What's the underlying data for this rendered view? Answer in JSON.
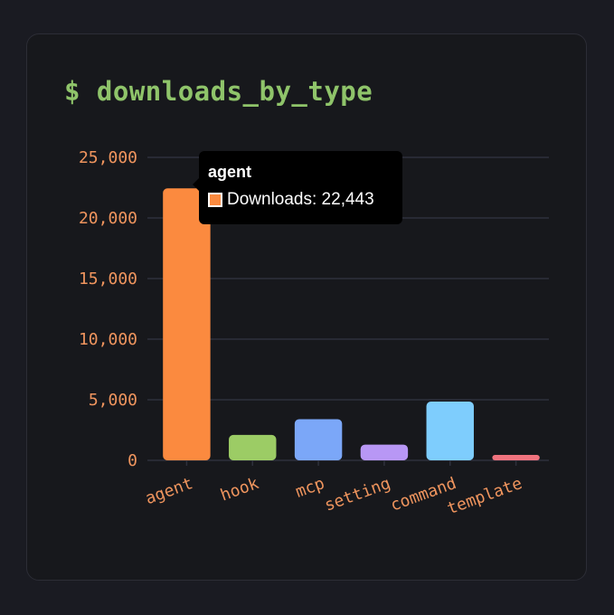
{
  "title": "$ downloads_by_type",
  "chart_data": {
    "type": "bar",
    "categories": [
      "agent",
      "hook",
      "mcp",
      "setting",
      "command",
      "template"
    ],
    "series": [
      {
        "name": "Downloads",
        "values": [
          22443,
          2100,
          3400,
          1300,
          4850,
          450
        ]
      }
    ],
    "colors": [
      "#fb8a3f",
      "#9ccc65",
      "#7ba7f8",
      "#b897f5",
      "#7ecdfd",
      "#f0737e"
    ],
    "ylim": [
      0,
      25000
    ],
    "yticks": [
      0,
      5000,
      10000,
      15000,
      20000,
      25000
    ],
    "ytick_labels": [
      "0",
      "5,000",
      "10,000",
      "15,000",
      "20,000",
      "25,000"
    ],
    "grid": true,
    "legend": "none",
    "tooltip": {
      "title": "agent",
      "label": "Downloads: 22,443",
      "swatch_color": "#fb8a3f"
    }
  },
  "colors": {
    "background": "#1a1b22",
    "card": "#17181c",
    "grid": "#2e303c",
    "title": "#8fc46a",
    "labels": "#f0955e"
  }
}
